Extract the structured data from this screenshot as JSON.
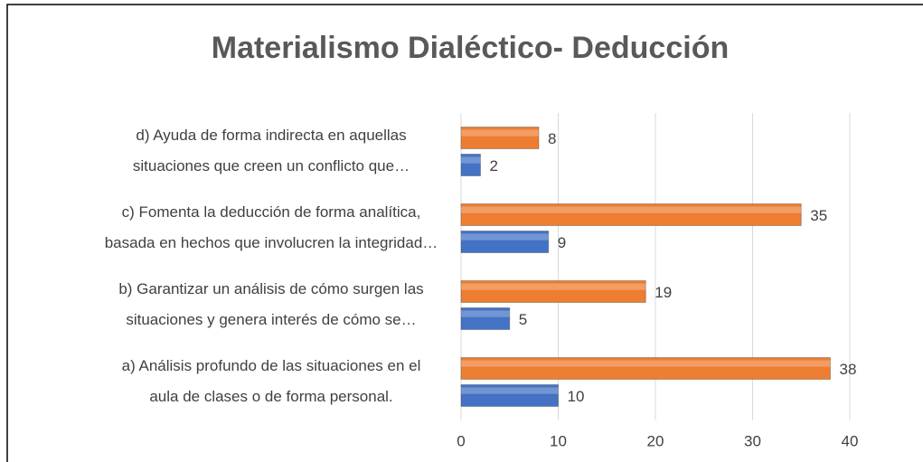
{
  "chart_data": {
    "type": "bar",
    "orientation": "horizontal",
    "title": "Materialismo Dialéctico- Deducción",
    "categories": [
      [
        "d) Ayuda de forma indirecta en aquellas",
        "situaciones que creen un conflicto que…"
      ],
      [
        "c)    Fomenta la deducción de forma analítica,",
        "basada en hechos que involucren la integridad…"
      ],
      [
        "b)    Garantizar un análisis de cómo surgen las",
        "situaciones y genera interés de cómo se…"
      ],
      [
        "a)     Análisis profundo de las situaciones en el",
        "aula de clases o de forma personal."
      ]
    ],
    "series": [
      {
        "color": "#ed7d31",
        "values": [
          8,
          35,
          19,
          38
        ]
      },
      {
        "color": "#4472c4",
        "values": [
          2,
          9,
          5,
          10
        ]
      }
    ],
    "xlim": [
      0,
      40
    ],
    "xticks": [
      0,
      10,
      20,
      30,
      40
    ],
    "grid": true
  }
}
